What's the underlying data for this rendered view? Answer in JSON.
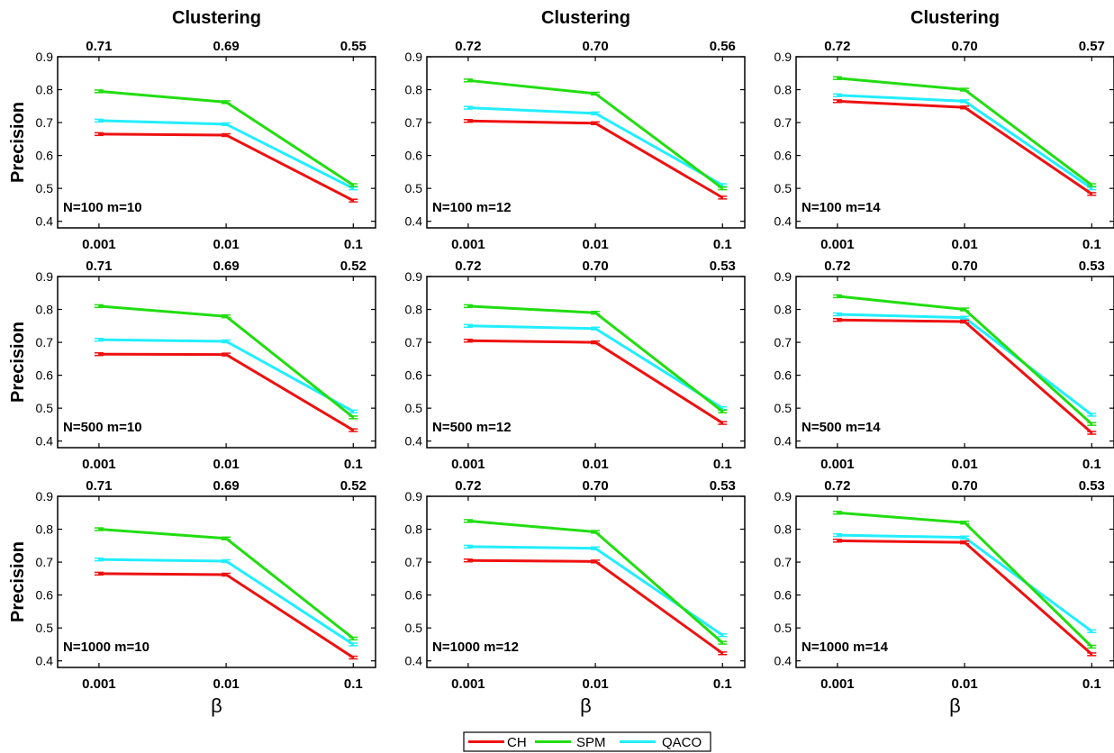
{
  "figure": {
    "column_titles": [
      "Clustering",
      "Clustering",
      "Clustering"
    ],
    "y_axis_label": "Precision",
    "x_axis_label": "β",
    "legend": [
      {
        "name": "CH",
        "color": "#ee1111"
      },
      {
        "name": "SPM",
        "color": "#22dd11"
      },
      {
        "name": "QACO",
        "color": "#22eeff"
      }
    ]
  },
  "chart_data": [
    {
      "type": "line",
      "row": 0,
      "col": 0,
      "annotation": "N=100 m=10",
      "x": [
        "0.001",
        "0.01",
        "0.1"
      ],
      "top_ticks": [
        "0.71",
        "0.69",
        "0.55"
      ],
      "ylim": [
        0.38,
        0.9
      ],
      "yticks": [
        "0.4",
        "0.5",
        "0.6",
        "0.7",
        "0.8",
        "0.9"
      ],
      "series": [
        {
          "name": "CH",
          "values": [
            0.665,
            0.662,
            0.463
          ]
        },
        {
          "name": "SPM",
          "values": [
            0.795,
            0.762,
            0.51
          ]
        },
        {
          "name": "QACO",
          "values": [
            0.706,
            0.695,
            0.5
          ]
        }
      ]
    },
    {
      "type": "line",
      "row": 0,
      "col": 1,
      "annotation": "N=100 m=12",
      "x": [
        "0.001",
        "0.01",
        "0.1"
      ],
      "top_ticks": [
        "0.72",
        "0.70",
        "0.56"
      ],
      "ylim": [
        0.38,
        0.9
      ],
      "yticks": [
        "0.4",
        "0.5",
        "0.6",
        "0.7",
        "0.8",
        "0.9"
      ],
      "series": [
        {
          "name": "CH",
          "values": [
            0.705,
            0.698,
            0.472
          ]
        },
        {
          "name": "SPM",
          "values": [
            0.828,
            0.788,
            0.5
          ]
        },
        {
          "name": "QACO",
          "values": [
            0.745,
            0.728,
            0.51
          ]
        }
      ]
    },
    {
      "type": "line",
      "row": 0,
      "col": 2,
      "annotation": "N=100 m=14",
      "x": [
        "0.001",
        "0.01",
        "0.1"
      ],
      "top_ticks": [
        "0.72",
        "0.70",
        "0.57"
      ],
      "ylim": [
        0.38,
        0.9
      ],
      "yticks": [
        "0.4",
        "0.5",
        "0.6",
        "0.7",
        "0.8",
        "0.9"
      ],
      "series": [
        {
          "name": "CH",
          "values": [
            0.765,
            0.746,
            0.483
          ]
        },
        {
          "name": "SPM",
          "values": [
            0.835,
            0.8,
            0.51
          ]
        },
        {
          "name": "QACO",
          "values": [
            0.783,
            0.765,
            0.5
          ]
        }
      ]
    },
    {
      "type": "line",
      "row": 1,
      "col": 0,
      "annotation": "N=500 m=10",
      "x": [
        "0.001",
        "0.01",
        "0.1"
      ],
      "top_ticks": [
        "0.71",
        "0.69",
        "0.52"
      ],
      "ylim": [
        0.38,
        0.9
      ],
      "yticks": [
        "0.4",
        "0.5",
        "0.6",
        "0.7",
        "0.8",
        "0.9"
      ],
      "series": [
        {
          "name": "CH",
          "values": [
            0.664,
            0.663,
            0.433
          ]
        },
        {
          "name": "SPM",
          "values": [
            0.81,
            0.779,
            0.472
          ]
        },
        {
          "name": "QACO",
          "values": [
            0.708,
            0.703,
            0.49
          ]
        }
      ]
    },
    {
      "type": "line",
      "row": 1,
      "col": 1,
      "annotation": "N=500 m=12",
      "x": [
        "0.001",
        "0.01",
        "0.1"
      ],
      "top_ticks": [
        "0.72",
        "0.70",
        "0.53"
      ],
      "ylim": [
        0.38,
        0.9
      ],
      "yticks": [
        "0.4",
        "0.5",
        "0.6",
        "0.7",
        "0.8",
        "0.9"
      ],
      "series": [
        {
          "name": "CH",
          "values": [
            0.705,
            0.7,
            0.455
          ]
        },
        {
          "name": "SPM",
          "values": [
            0.81,
            0.79,
            0.49
          ]
        },
        {
          "name": "QACO",
          "values": [
            0.75,
            0.742,
            0.5
          ]
        }
      ]
    },
    {
      "type": "line",
      "row": 1,
      "col": 2,
      "annotation": "N=500 m=14",
      "x": [
        "0.001",
        "0.01",
        "0.1"
      ],
      "top_ticks": [
        "0.72",
        "0.70",
        "0.53"
      ],
      "ylim": [
        0.38,
        0.9
      ],
      "yticks": [
        "0.4",
        "0.5",
        "0.6",
        "0.7",
        "0.8",
        "0.9"
      ],
      "series": [
        {
          "name": "CH",
          "values": [
            0.768,
            0.763,
            0.425
          ]
        },
        {
          "name": "SPM",
          "values": [
            0.84,
            0.8,
            0.452
          ]
        },
        {
          "name": "QACO",
          "values": [
            0.785,
            0.775,
            0.48
          ]
        }
      ]
    },
    {
      "type": "line",
      "row": 2,
      "col": 0,
      "annotation": "N=1000 m=10",
      "x": [
        "0.001",
        "0.01",
        "0.1"
      ],
      "top_ticks": [
        "0.71",
        "0.69",
        "0.52"
      ],
      "ylim": [
        0.38,
        0.9
      ],
      "yticks": [
        "0.4",
        "0.5",
        "0.6",
        "0.7",
        "0.8",
        "0.9"
      ],
      "series": [
        {
          "name": "CH",
          "values": [
            0.665,
            0.662,
            0.41
          ]
        },
        {
          "name": "SPM",
          "values": [
            0.8,
            0.772,
            0.468
          ]
        },
        {
          "name": "QACO",
          "values": [
            0.708,
            0.703,
            0.45
          ]
        }
      ]
    },
    {
      "type": "line",
      "row": 2,
      "col": 1,
      "annotation": "N=1000 m=12",
      "x": [
        "0.001",
        "0.01",
        "0.1"
      ],
      "top_ticks": [
        "0.72",
        "0.70",
        "0.53"
      ],
      "ylim": [
        0.38,
        0.9
      ],
      "yticks": [
        "0.4",
        "0.5",
        "0.6",
        "0.7",
        "0.8",
        "0.9"
      ],
      "series": [
        {
          "name": "CH",
          "values": [
            0.705,
            0.702,
            0.423
          ]
        },
        {
          "name": "SPM",
          "values": [
            0.825,
            0.792,
            0.455
          ]
        },
        {
          "name": "QACO",
          "values": [
            0.747,
            0.742,
            0.478
          ]
        }
      ]
    },
    {
      "type": "line",
      "row": 2,
      "col": 2,
      "annotation": "N=1000 m=14",
      "x": [
        "0.001",
        "0.01",
        "0.1"
      ],
      "top_ticks": [
        "0.72",
        "0.70",
        "0.53"
      ],
      "ylim": [
        0.38,
        0.9
      ],
      "yticks": [
        "0.4",
        "0.5",
        "0.6",
        "0.7",
        "0.8",
        "0.9"
      ],
      "series": [
        {
          "name": "CH",
          "values": [
            0.765,
            0.76,
            0.42
          ]
        },
        {
          "name": "SPM",
          "values": [
            0.85,
            0.82,
            0.443
          ]
        },
        {
          "name": "QACO",
          "values": [
            0.782,
            0.775,
            0.49
          ]
        }
      ]
    }
  ]
}
